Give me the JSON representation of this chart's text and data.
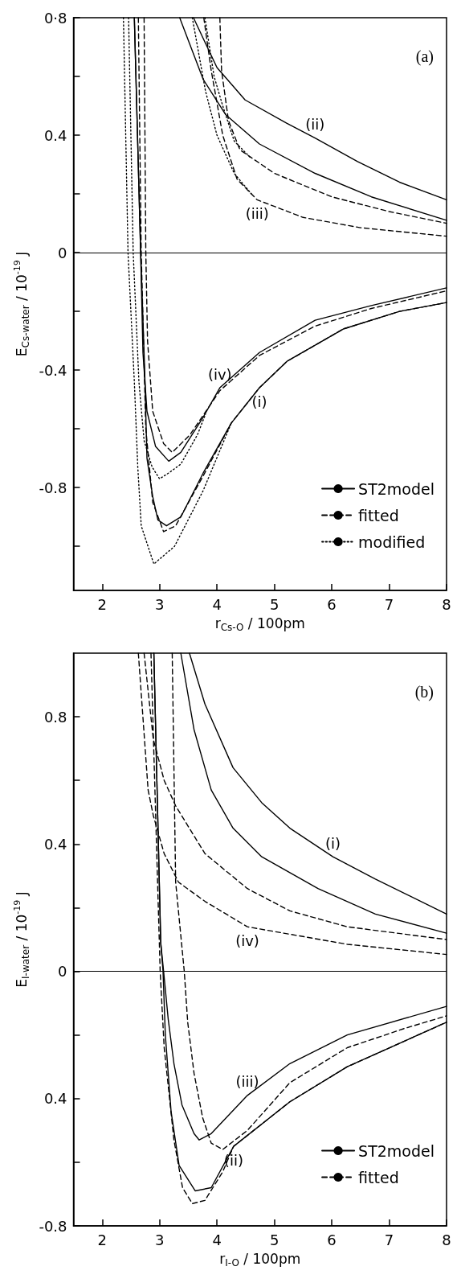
{
  "chart_data": [
    {
      "type": "line",
      "xlabel": "r$_{Cs-O}$ / 100pm",
      "ylabel": "E$_{Cs-water}$ / 10$^{-19}$ J",
      "xlim": [
        1.5,
        8
      ],
      "xticks": [
        2,
        3,
        4,
        5,
        6,
        7,
        8
      ],
      "ylim": [
        -1.15,
        0.8
      ],
      "yticks": [
        {
          "value": -1.0,
          "label": null
        },
        -0.8,
        {
          "value": -0.6,
          "label": null
        },
        -0.4,
        {
          "value": -0.2,
          "label": null
        },
        0,
        {
          "value": 0.2,
          "label": null
        },
        0.4,
        {
          "value": 0.6,
          "label": null
        },
        {
          "value": 0.8,
          "label": "0·8"
        }
      ],
      "grid": false,
      "legend": "bottom right",
      "marker": "none",
      "ref_lines": [
        {
          "axis": "y",
          "value": 0
        }
      ],
      "annotations": [
        "(a)",
        {
          "text": "(ii)",
          "x": 5.71,
          "y": 0.39
        },
        {
          "text": "(iii)",
          "x": 4.7,
          "y": 0.18
        },
        {
          "text": "(iv)",
          "x": 4.05,
          "y": -0.46
        },
        {
          "text": "(i)",
          "x": 4.74,
          "y": -0.46
        }
      ],
      "series": [
        {
          "name": "ST2model",
          "color": "#000000",
          "line_style": "solid",
          "x": [
            3.59,
            4.0,
            4.49,
            5.22,
            5.71,
            6.45,
            7.18,
            8.0
          ],
          "values": [
            0.8,
            0.63,
            0.52,
            0.44,
            0.39,
            0.31,
            0.24,
            0.18
          ]
        },
        {
          "color": "#000000",
          "line_style": "solid",
          "x": [
            3.35,
            3.76,
            4.15,
            4.74,
            5.71,
            6.69,
            8.0
          ],
          "values": [
            0.8,
            0.59,
            0.47,
            0.37,
            0.27,
            0.19,
            0.11
          ]
        },
        {
          "color": "#000000",
          "line_style": "solid",
          "x": [
            2.56,
            2.67,
            2.71,
            2.78,
            2.93,
            3.16,
            3.37,
            3.76,
            4.05,
            4.74,
            5.71,
            6.69,
            8.0
          ],
          "values": [
            0.8,
            0.0,
            -0.34,
            -0.54,
            -0.66,
            -0.71,
            -0.68,
            -0.56,
            -0.46,
            -0.34,
            -0.23,
            -0.18,
            -0.12
          ]
        },
        {
          "color": "#000000",
          "line_style": "solid",
          "x": [
            2.56,
            2.67,
            2.74,
            2.78,
            2.88,
            2.97,
            3.12,
            3.37,
            3.76,
            4.25,
            4.74,
            5.22,
            6.2,
            7.18,
            8.0
          ],
          "values": [
            0.8,
            0.0,
            -0.4,
            -0.7,
            -0.83,
            -0.91,
            -0.93,
            -0.9,
            -0.75,
            -0.58,
            -0.46,
            -0.37,
            -0.26,
            -0.2,
            -0.17
          ]
        },
        {
          "name": "fitted",
          "color": "#000000",
          "line_style": "dashed",
          "x": [
            4.05,
            4.08,
            4.2,
            4.4,
            5.0,
            6.0,
            7.0,
            8.0
          ],
          "values": [
            0.8,
            0.62,
            0.45,
            0.35,
            0.27,
            0.19,
            0.14,
            0.1
          ]
        },
        {
          "color": "#000000",
          "line_style": "dashed",
          "x": [
            3.77,
            3.9,
            4.1,
            4.35,
            4.7,
            5.5,
            6.5,
            8.0
          ],
          "values": [
            0.8,
            0.62,
            0.4,
            0.25,
            0.18,
            0.12,
            0.085,
            0.056
          ]
        },
        {
          "color": "#000000",
          "line_style": "dashed",
          "x": [
            2.73,
            2.76,
            2.79,
            2.88,
            3.07,
            3.22,
            3.53,
            4.05,
            4.74,
            5.71,
            6.69,
            8.0
          ],
          "values": [
            0.8,
            0.0,
            -0.3,
            -0.54,
            -0.65,
            -0.68,
            -0.62,
            -0.47,
            -0.35,
            -0.25,
            -0.19,
            -0.13
          ]
        },
        {
          "color": "#000000",
          "line_style": "dashed",
          "x": [
            2.63,
            2.68,
            2.76,
            2.88,
            3.07,
            3.28,
            3.76,
            4.25,
            4.74,
            5.22,
            6.2,
            7.18,
            8.0
          ],
          "values": [
            0.8,
            0.0,
            -0.6,
            -0.85,
            -0.95,
            -0.93,
            -0.76,
            -0.58,
            -0.46,
            -0.37,
            -0.26,
            -0.2,
            -0.17
          ]
        },
        {
          "name": "modified",
          "color": "#000000",
          "line_style": "dotted",
          "x": [
            3.57,
            3.8,
            4.0,
            4.3,
            4.6
          ],
          "values": [
            0.8,
            0.55,
            0.4,
            0.27,
            0.2
          ]
        },
        {
          "color": "#000000",
          "line_style": "dotted",
          "x": [
            3.79,
            3.95,
            4.1,
            4.3,
            4.6
          ],
          "values": [
            0.8,
            0.6,
            0.5,
            0.38,
            0.32
          ]
        },
        {
          "color": "#000000",
          "line_style": "dotted",
          "x": [
            2.37,
            2.45,
            2.56,
            2.62,
            2.68,
            2.9,
            3.26,
            3.76,
            4.25
          ],
          "values": [
            0.8,
            0.0,
            -0.44,
            -0.73,
            -0.93,
            -1.06,
            -1.0,
            -0.81,
            -0.58
          ]
        },
        {
          "color": "#000000",
          "line_style": "dotted",
          "x": [
            2.46,
            2.54,
            2.64,
            2.73,
            2.87,
            3.0,
            3.16,
            3.37,
            3.66,
            3.8
          ],
          "values": [
            0.8,
            0.0,
            -0.44,
            -0.64,
            -0.73,
            -0.77,
            -0.75,
            -0.72,
            -0.62,
            -0.55
          ]
        }
      ]
    },
    {
      "type": "line",
      "xlabel": "r$_{I-O}$ / 100pm",
      "ylabel": "E$_{I-water}$ / 10$^{-19}$ J",
      "xlim": [
        1.5,
        8
      ],
      "xticks": [
        2,
        3,
        4,
        5,
        6,
        7,
        8
      ],
      "ylim": [
        -0.8,
        1.0
      ],
      "yticks": [
        -0.8,
        {
          "value": -0.6,
          "label": null
        },
        {
          "value": -0.4,
          "label": "0.4"
        },
        {
          "value": -0.2,
          "label": null
        },
        0,
        {
          "value": 0.2,
          "label": null
        },
        0.4,
        {
          "value": 0.6,
          "label": null
        },
        0.8
      ],
      "grid": false,
      "legend": "bottom right",
      "marker": "none",
      "ref_lines": [
        {
          "axis": "y",
          "value": 0
        }
      ],
      "annotations": [
        "(b)",
        {
          "text": "(i)",
          "x": 6.02,
          "y": 0.36
        },
        {
          "text": "(iv)",
          "x": 4.53,
          "y": 0.14
        },
        {
          "text": "(iii)",
          "x": 4.53,
          "y": -0.39
        },
        {
          "text": "(ii)",
          "x": 4.29,
          "y": -0.55
        }
      ],
      "series": [
        {
          "name": "ST2model",
          "color": "#000000",
          "line_style": "solid",
          "x": [
            3.52,
            3.79,
            4.28,
            4.78,
            5.27,
            6.02,
            6.76,
            8.0
          ],
          "values": [
            1.0,
            0.84,
            0.64,
            0.53,
            0.45,
            0.36,
            0.29,
            0.18
          ]
        },
        {
          "color": "#000000",
          "line_style": "solid",
          "x": [
            3.37,
            3.6,
            3.9,
            4.28,
            4.78,
            5.76,
            6.76,
            8.0
          ],
          "values": [
            1.0,
            0.76,
            0.57,
            0.45,
            0.36,
            0.26,
            0.18,
            0.12
          ]
        },
        {
          "color": "#000000",
          "line_style": "solid",
          "x": [
            2.9,
            3.02,
            3.07,
            3.15,
            3.25,
            3.39,
            3.6,
            3.69,
            3.9,
            4.53,
            5.27,
            6.27,
            8.0
          ],
          "values": [
            1.0,
            0.09,
            0.0,
            -0.15,
            -0.29,
            -0.42,
            -0.51,
            -0.53,
            -0.51,
            -0.39,
            -0.29,
            -0.2,
            -0.11
          ]
        },
        {
          "color": "#000000",
          "line_style": "solid",
          "x": [
            2.9,
            3.02,
            3.06,
            3.1,
            3.2,
            3.34,
            3.62,
            3.9,
            4.29,
            5.27,
            6.27,
            8.0
          ],
          "values": [
            1.0,
            0.09,
            0.0,
            -0.2,
            -0.44,
            -0.61,
            -0.69,
            -0.68,
            -0.55,
            -0.41,
            -0.3,
            -0.16
          ]
        },
        {
          "name": "fitted",
          "color": "#000000",
          "line_style": "dashed",
          "x": [
            2.73,
            2.89,
            3.08,
            3.28,
            3.79,
            4.53,
            5.27,
            6.27,
            8.0
          ],
          "values": [
            1.0,
            0.73,
            0.6,
            0.52,
            0.37,
            0.26,
            0.19,
            0.14,
            0.1
          ]
        },
        {
          "color": "#000000",
          "line_style": "dashed",
          "x": [
            2.63,
            2.8,
            2.89,
            3.08,
            3.33,
            3.79,
            4.53,
            6.27,
            8.0
          ],
          "values": [
            1.0,
            0.57,
            0.49,
            0.37,
            0.28,
            0.22,
            0.14,
            0.085,
            0.053
          ]
        },
        {
          "color": "#000000",
          "line_style": "dashed",
          "x": [
            3.22,
            3.28,
            3.43,
            3.49,
            3.6,
            3.75,
            3.9,
            4.1,
            4.53,
            5.27,
            6.27,
            7.26,
            8.0
          ],
          "values": [
            1.0,
            0.28,
            0.0,
            -0.16,
            -0.32,
            -0.46,
            -0.54,
            -0.56,
            -0.5,
            -0.35,
            -0.24,
            -0.18,
            -0.14
          ]
        },
        {
          "color": "#000000",
          "line_style": "dashed",
          "x": [
            2.85,
            3.01,
            3.08,
            3.25,
            3.4,
            3.57,
            3.79,
            4.1,
            4.29,
            5.27,
            6.27,
            8.0
          ],
          "values": [
            1.0,
            0.0,
            -0.24,
            -0.53,
            -0.68,
            -0.73,
            -0.72,
            -0.63,
            -0.55,
            -0.41,
            -0.3,
            -0.16
          ]
        }
      ]
    }
  ]
}
